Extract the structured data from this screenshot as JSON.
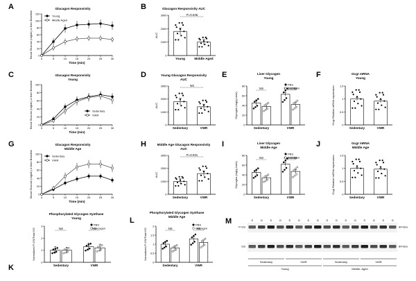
{
  "panels": [
    {
      "id": "A",
      "letter": "A",
      "title": "Glucagon Responsivity",
      "type": "line",
      "xlabel": "Time (min)",
      "ylabel": "Blood Glucose (mg/dL) Δ from Baseline",
      "ylim": [
        0,
        120
      ],
      "yticks": [
        0,
        20,
        40,
        60,
        80,
        100,
        120
      ],
      "x": [
        0,
        5,
        10,
        15,
        20,
        25,
        30
      ],
      "series": [
        {
          "name": "Young",
          "marker": "filled",
          "values": [
            0,
            40,
            78,
            88,
            90,
            92,
            86
          ],
          "err": [
            6,
            10,
            12,
            12,
            12,
            12,
            12
          ]
        },
        {
          "name": "Middle Aged",
          "marker": "open",
          "values": [
            0,
            22,
            40,
            48,
            50,
            50,
            46
          ],
          "err": [
            4,
            8,
            9,
            8,
            8,
            8,
            8
          ]
        }
      ],
      "legend": "top-left"
    },
    {
      "id": "B",
      "letter": "B",
      "title": "Glucagon  Responsivity  AUC",
      "type": "bar",
      "ylabel": "AUC",
      "ylim": [
        0,
        3000
      ],
      "yticks": [
        0,
        1000,
        2000,
        3000
      ],
      "categories": [
        "Young",
        "Middle Aged"
      ],
      "values": [
        1800,
        1000
      ],
      "err": [
        250,
        200
      ],
      "significance": "P=0.046"
    },
    {
      "id": "C",
      "letter": "C",
      "title": "Glucagon Responsivity\nYoung",
      "type": "line",
      "xlabel": "Time (min)",
      "ylabel": "Blood Glucose (mg/dL) Δ from Baseline",
      "ylim": [
        0,
        100
      ],
      "yticks": [
        0,
        20,
        40,
        60,
        80,
        100
      ],
      "x": [
        0,
        5,
        10,
        15,
        20,
        25,
        30
      ],
      "series": [
        {
          "name": "Sedentary",
          "marker": "filled",
          "values": [
            0,
            15,
            45,
            62,
            70,
            75,
            70
          ],
          "err": [
            3,
            6,
            8,
            9,
            9,
            9,
            9
          ]
        },
        {
          "name": "VWR",
          "marker": "open",
          "values": [
            0,
            10,
            35,
            58,
            68,
            72,
            62
          ],
          "err": [
            3,
            6,
            9,
            10,
            10,
            10,
            10
          ]
        }
      ],
      "legend": "bottom-right"
    },
    {
      "id": "D",
      "letter": "D",
      "title": "Young Glucagon Responsivity\nAUC",
      "type": "bar",
      "ylabel": "AUC",
      "ylim": [
        0,
        3000
      ],
      "yticks": [
        0,
        1000,
        2000,
        3000
      ],
      "categories": [
        "Sedentary",
        "VWR"
      ],
      "values": [
        1800,
        1400
      ],
      "err": [
        250,
        200
      ],
      "significance": "NS"
    },
    {
      "id": "E",
      "letter": "E",
      "title": "Liver Glycogen\nYoung",
      "type": "grouped-bar",
      "ylabel": "Glycogen (mg/g Liver)",
      "ylim": [
        0,
        80
      ],
      "yticks": [
        0,
        20,
        40,
        60,
        80
      ],
      "categories": [
        "Sedentary",
        "VWR"
      ],
      "series": [
        {
          "name": "PBS",
          "fill": "#000000",
          "values": [
            45,
            63
          ],
          "err": [
            4,
            4
          ]
        },
        {
          "name": "Glucagon",
          "fill": "#ffffff",
          "values": [
            38,
            42
          ],
          "err": [
            5,
            4
          ]
        }
      ],
      "significance": [
        "NS",
        "P=0.0055"
      ]
    },
    {
      "id": "F",
      "letter": "F",
      "title": "Gcgr mRNA\nYoung",
      "type": "bar",
      "ylabel": "Gcgr Relative mRNA expression",
      "ylim": [
        0,
        1.5
      ],
      "yticks": [
        0.0,
        0.5,
        1.0,
        1.5
      ],
      "categories": [
        "Sedentary",
        "VWR"
      ],
      "values": [
        1.0,
        0.92
      ],
      "err": [
        0.06,
        0.06
      ]
    },
    {
      "id": "G",
      "letter": "G",
      "title": "Glucagon Responsivity\nMiddle Age",
      "type": "line",
      "xlabel": "Time (min)",
      "ylabel": "Blood Glucose (mg/dL) Δ from Baseline",
      "ylim": [
        0,
        100
      ],
      "yticks": [
        0,
        20,
        40,
        60,
        80,
        100
      ],
      "x": [
        0,
        5,
        10,
        15,
        20,
        25,
        30
      ],
      "series": [
        {
          "name": "Sedentary",
          "marker": "filled",
          "values": [
            0,
            12,
            28,
            38,
            45,
            45,
            35
          ],
          "err": [
            3,
            5,
            6,
            7,
            7,
            7,
            7
          ]
        },
        {
          "name": "VWR",
          "marker": "open",
          "values": [
            0,
            15,
            45,
            68,
            75,
            75,
            65
          ],
          "err": [
            3,
            6,
            9,
            10,
            10,
            10,
            10
          ]
        }
      ],
      "legend": "top-left"
    },
    {
      "id": "H",
      "letter": "H",
      "title": "Middle Age Glucagon Responsivity\nAUC",
      "type": "bar",
      "ylabel": "AUC",
      "ylim": [
        0,
        3000
      ],
      "yticks": [
        0,
        1000,
        2000,
        3000
      ],
      "categories": [
        "Sedentary",
        "VWR"
      ],
      "values": [
        1000,
        1600
      ],
      "err": [
        200,
        200
      ],
      "significance": "P=0.031"
    },
    {
      "id": "I",
      "letter": "I",
      "title": "Liver Glycogen\nMiddle Age",
      "type": "grouped-bar",
      "ylabel": "Glycogen (mg/g Liver)",
      "ylim": [
        0,
        80
      ],
      "yticks": [
        0,
        20,
        40,
        60,
        80
      ],
      "categories": [
        "Sedentary",
        "VWR"
      ],
      "series": [
        {
          "name": "PBS",
          "fill": "#000000",
          "values": [
            45,
            62
          ],
          "err": [
            4,
            4
          ]
        },
        {
          "name": "Glucagon",
          "fill": "#ffffff",
          "values": [
            34,
            47
          ],
          "err": [
            4,
            4
          ]
        }
      ],
      "significance": [
        "NS",
        "P=0.0036"
      ]
    },
    {
      "id": "J",
      "letter": "J",
      "title": "Gcgr mRNA\nMiddle Age",
      "type": "bar",
      "ylabel": "Gcgr Relative mRNA expression",
      "ylim": [
        0,
        1.5
      ],
      "yticks": [
        0.0,
        0.5,
        1.0,
        1.5
      ],
      "categories": [
        "Sedentary",
        "VWR"
      ],
      "values": [
        1.0,
        0.97
      ],
      "err": [
        0.04,
        0.04
      ]
    },
    {
      "id": "K",
      "letter": "K",
      "title": "Phosphorylated Glycogen Synthase\nYoung",
      "type": "grouped-bar",
      "ylabel": "Normalized P-GS/Total GS",
      "ylim": [
        0,
        3
      ],
      "yticks": [
        0,
        1,
        2,
        3
      ],
      "categories": [
        "Sedentary",
        "VWR"
      ],
      "series": [
        {
          "name": "PBS",
          "fill": "#000000",
          "values": [
            1.0,
            1.3
          ],
          "err": [
            0.3,
            0.3
          ]
        },
        {
          "name": "Glucagon",
          "fill": "#ffffff",
          "values": [
            1.0,
            1.2
          ],
          "err": [
            0.25,
            0.3
          ]
        }
      ],
      "significance": [
        "NS",
        "NS"
      ]
    },
    {
      "id": "L",
      "letter": "L",
      "title": "Phosphorylated Glycogen Synthase\nMiddle  Age",
      "type": "grouped-bar",
      "ylabel": "Normalized P-GS/Total GS",
      "ylim": [
        0,
        2
      ],
      "yticks": [
        0.0,
        0.5,
        1.0,
        1.5,
        2.0
      ],
      "categories": [
        "Sedentary",
        "VWR"
      ],
      "series": [
        {
          "name": "PBS",
          "fill": "#000000",
          "values": [
            1.0,
            1.3
          ],
          "err": [
            0.15,
            0.15
          ]
        },
        {
          "name": "Glucagon",
          "fill": "#ffffff",
          "values": [
            0.8,
            1.1
          ],
          "err": [
            0.1,
            0.15
          ]
        }
      ],
      "significance": [
        "NS",
        "NS"
      ]
    }
  ],
  "blot": {
    "letter": "M",
    "lane_labels": [
      "S",
      "G",
      "S",
      "G",
      "S",
      "G",
      "S",
      "G",
      "S",
      "G",
      "S",
      "G",
      "S",
      "G",
      "S",
      "G"
    ],
    "rows": [
      {
        "label": "P-GS",
        "mw": "84 kDa"
      },
      {
        "label": "GS",
        "mw": "84 kDa"
      }
    ],
    "groups": [
      {
        "label": "Sedentary"
      },
      {
        "label": "VWR"
      },
      {
        "label": "Sedentary"
      },
      {
        "label": "VWR"
      }
    ],
    "supergroups": [
      {
        "label": "Young"
      },
      {
        "label": "Middle- Aged"
      }
    ]
  }
}
